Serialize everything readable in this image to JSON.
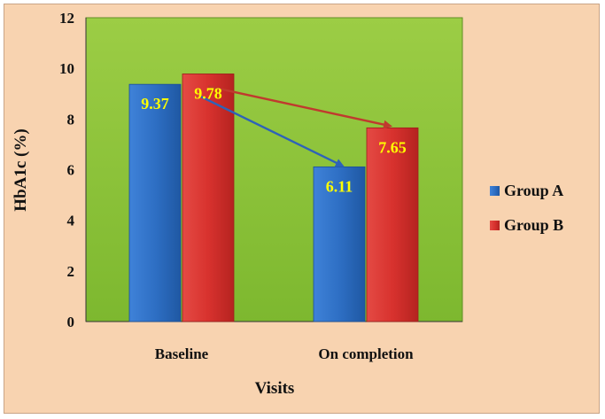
{
  "chart_data": {
    "type": "bar",
    "categories": [
      "Baseline",
      "On completion"
    ],
    "series": [
      {
        "name": "Group A",
        "values": [
          9.37,
          6.11
        ],
        "color": "#2e6fc4"
      },
      {
        "name": "Group B",
        "values": [
          9.78,
          7.65
        ],
        "color": "#d8322e"
      }
    ],
    "data_labels": [
      [
        "9.37",
        "6.11"
      ],
      [
        "9.78",
        "7.65"
      ]
    ],
    "xlabel": "Visits",
    "ylabel": "HbA1c (%)",
    "ylim": [
      0,
      12
    ],
    "yticks": [
      "0",
      "2",
      "4",
      "6",
      "8",
      "10",
      "12"
    ],
    "grid": false,
    "legend_position": "right",
    "plot_background": "#8cc43a",
    "page_background": "#f8d3b0",
    "arrows": true
  }
}
